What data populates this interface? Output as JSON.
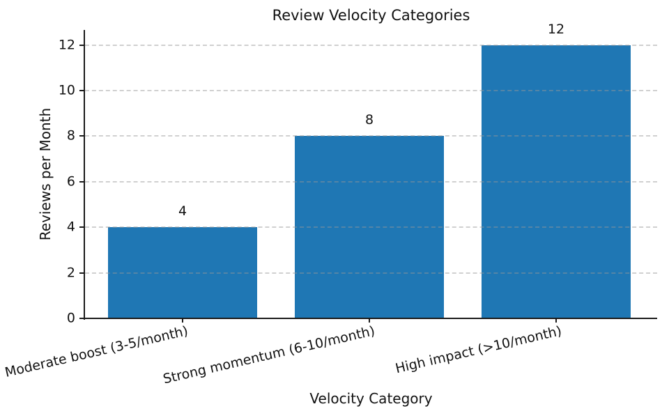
{
  "chart_data": {
    "type": "bar",
    "title": "Review Velocity Categories",
    "xlabel": "Velocity Category",
    "ylabel": "Reviews per Month",
    "categories": [
      "Moderate boost (3-5/month)",
      "Strong momentum (6-10/month)",
      "High impact (>10/month)"
    ],
    "values": [
      4,
      8,
      12
    ],
    "bar_value_labels": [
      "4",
      "8",
      "12"
    ],
    "yticks": [
      0,
      2,
      4,
      6,
      8,
      10,
      12
    ],
    "ylim": [
      0,
      12.66
    ],
    "bar_color": "#1f77b4",
    "grid": "horizontal-dashed",
    "gridline_color": "#d9d9d9",
    "legend": "none",
    "x_tick_label_rotation_deg": 13
  }
}
